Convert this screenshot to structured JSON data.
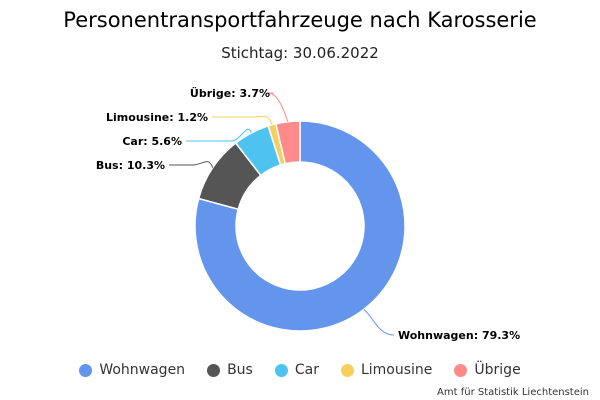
{
  "chart_data": {
    "type": "pie",
    "title": "Personentransportfahrzeuge nach Karosserie",
    "subtitle": "Stichtag: 30.06.2022",
    "categories": [
      "Wohnwagen",
      "Bus",
      "Car",
      "Limousine",
      "Übrige"
    ],
    "values": [
      79.3,
      10.3,
      5.6,
      1.2,
      3.7
    ],
    "data_labels": [
      "Wohnwagen: 79.3%",
      "Bus: 10.3%",
      "Car: 5.6%",
      "Limousine: 1.2%",
      "Übrige: 3.7%"
    ],
    "colors": [
      "#6495ed",
      "#555555",
      "#4fc3ef",
      "#f7cf5f",
      "#ff8a8a"
    ],
    "donut": true,
    "legend_position": "bottom"
  },
  "credits": "Amt für Statistik Liechtenstein"
}
